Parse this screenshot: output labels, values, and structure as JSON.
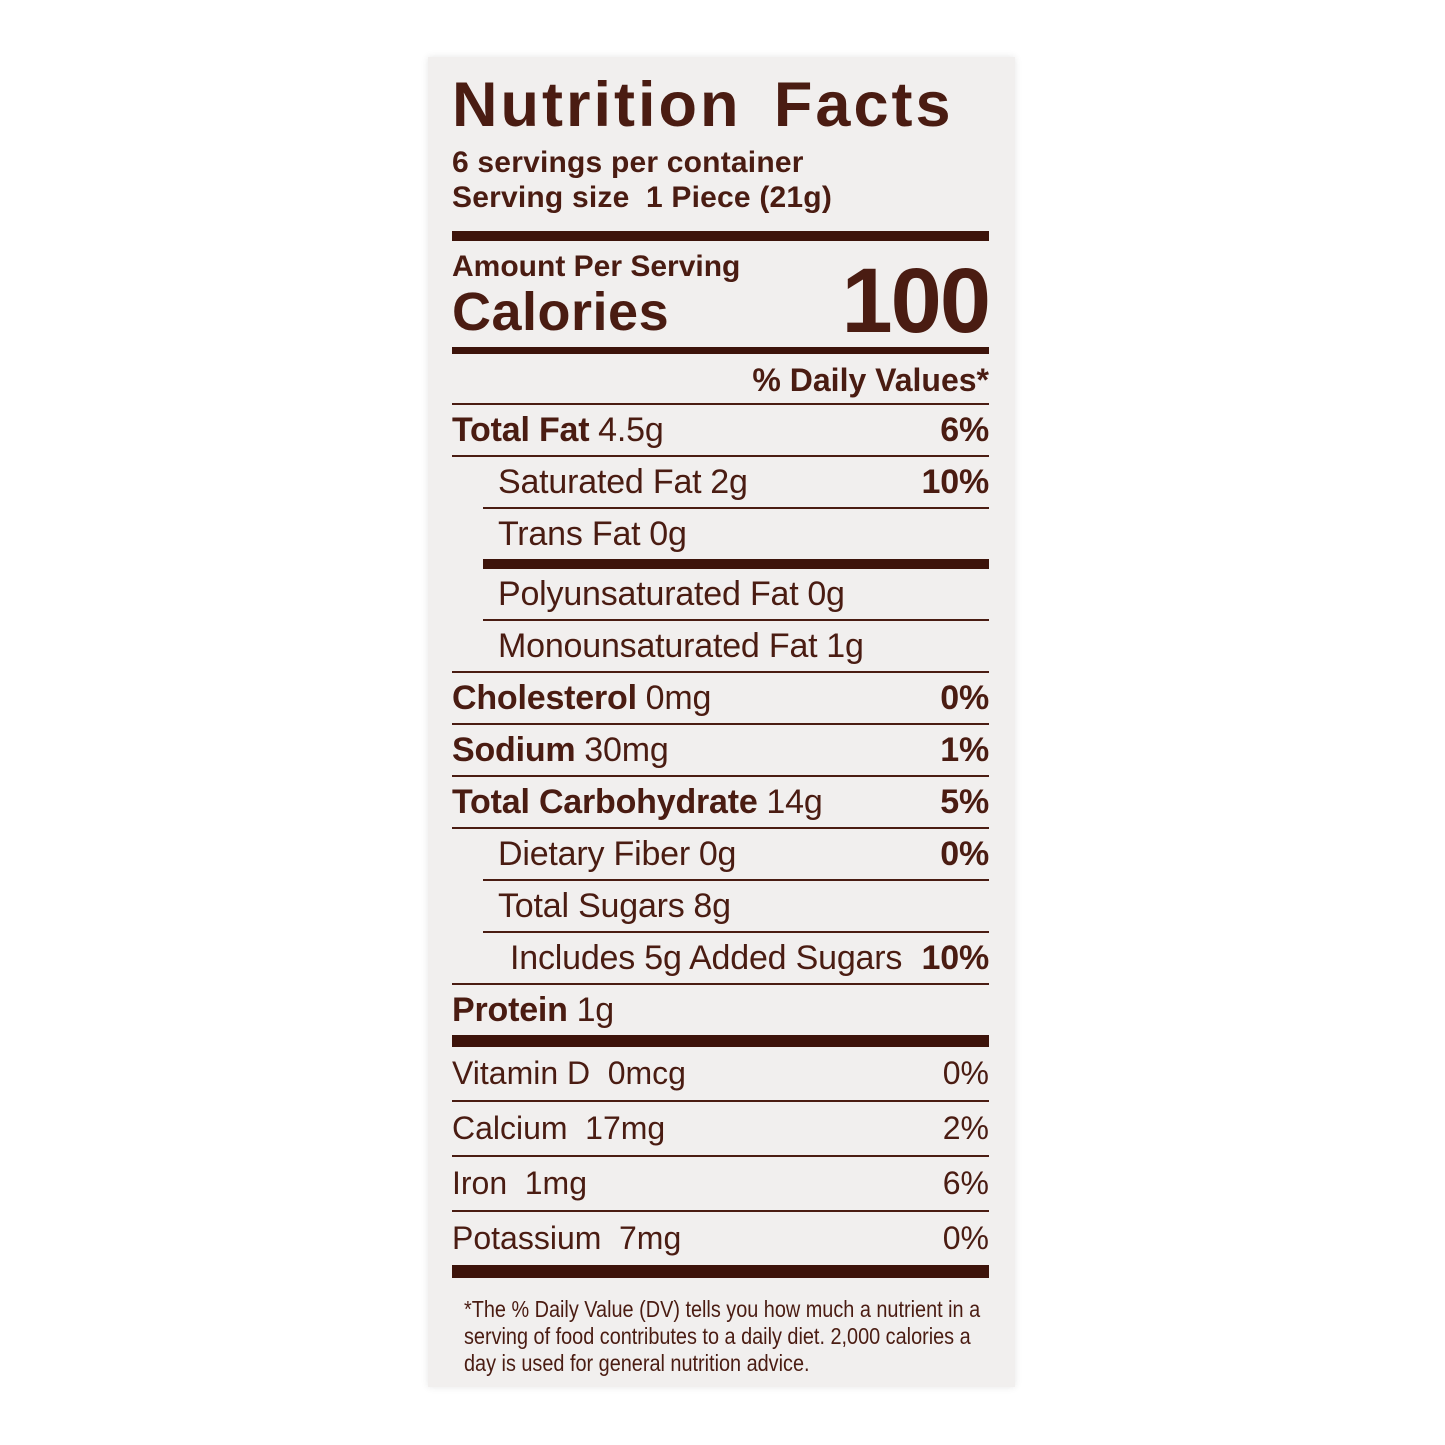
{
  "label": {
    "title": "Nutrition Facts",
    "servings_per_container": "6 servings per container",
    "serving_size_label": "Serving size",
    "serving_size_value": "1 Piece (21g)",
    "amount_per_serving": "Amount Per Serving",
    "calories_label": "Calories",
    "calories_value": "100",
    "daily_value_header": "% Daily Values*",
    "colors": {
      "text_brown": "#4a1c12",
      "bar_brown": "#3d130a",
      "card_background": "#f1efee"
    },
    "rows": [
      {
        "label": "Total Fat",
        "amount": "4.5g",
        "dv": "6%",
        "level": 0,
        "bold": true,
        "rule": "thin"
      },
      {
        "label": "Saturated Fat",
        "amount": "2g",
        "dv": "10%",
        "level": 1,
        "bold": false,
        "rule": "thin-indent"
      },
      {
        "label": "Trans Fat",
        "amount": "0g",
        "dv": "",
        "level": 1,
        "bold": false,
        "rule": "thick-indent"
      },
      {
        "label": "Polyunsaturated Fat",
        "amount": "0g",
        "dv": "",
        "level": 1,
        "bold": false,
        "rule": "thin-indent"
      },
      {
        "label": "Monounsaturated Fat",
        "amount": "1g",
        "dv": "",
        "level": 1,
        "bold": false,
        "rule": "thin"
      },
      {
        "label": "Cholesterol",
        "amount": "0mg",
        "dv": "0%",
        "level": 0,
        "bold": true,
        "rule": "thin"
      },
      {
        "label": "Sodium",
        "amount": "30mg",
        "dv": "1%",
        "level": 0,
        "bold": true,
        "rule": "thin"
      },
      {
        "label": "Total Carbohydrate",
        "amount": "14g",
        "dv": "5%",
        "level": 0,
        "bold": true,
        "rule": "thin"
      },
      {
        "label": "Dietary Fiber",
        "amount": "0g",
        "dv": "0%",
        "level": 1,
        "bold": false,
        "rule": "thin-indent"
      },
      {
        "label": "Total Sugars",
        "amount": "8g",
        "dv": "",
        "level": 1,
        "bold": false,
        "rule": "thin-indent"
      },
      {
        "label": "Includes 5g Added Sugars",
        "amount": "",
        "dv": "10%",
        "level": 2,
        "bold": false,
        "rule": "thin"
      },
      {
        "label": "Protein",
        "amount": "1g",
        "dv": "",
        "level": 0,
        "bold": true,
        "rule": "thick-full"
      }
    ],
    "vitamins": [
      {
        "label": "Vitamin D",
        "amount": "0mcg",
        "dv": "0%",
        "rule": "thin"
      },
      {
        "label": "Calcium",
        "amount": "17mg",
        "dv": "2%",
        "rule": "thin"
      },
      {
        "label": "Iron",
        "amount": "1mg",
        "dv": "6%",
        "rule": "thin"
      },
      {
        "label": "Potassium",
        "amount": "7mg",
        "dv": "0%",
        "rule": "thick-full"
      }
    ],
    "footnote": "*The % Daily Value (DV) tells you how much a nutrient in a serving of food contributes to a daily diet. 2,000 calories a day is used for general nutrition advice."
  }
}
